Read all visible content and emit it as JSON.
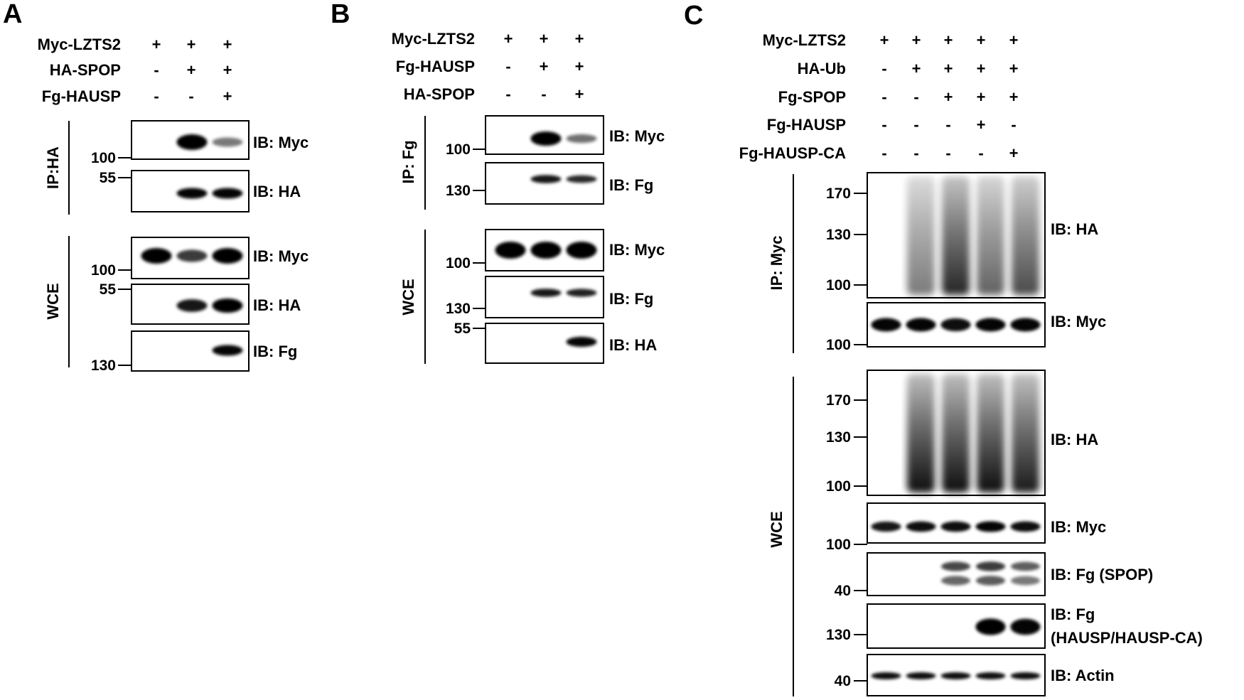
{
  "panels": [
    {
      "letter": "A",
      "conditions": [
        {
          "label": "Myc-LZTS2",
          "signs": [
            "+",
            "+",
            "+"
          ]
        },
        {
          "label": "HA-SPOP",
          "signs": [
            "-",
            "+",
            "+"
          ]
        },
        {
          "label": "Fg-HAUSP",
          "signs": [
            "-",
            "-",
            "+"
          ]
        }
      ],
      "groups": [
        "IP:HA",
        "WCE"
      ],
      "blots": [
        {
          "ib": "IB: Myc",
          "marker": "100",
          "bands": [
            0,
            1,
            0.25
          ]
        },
        {
          "ib": "IB: HA",
          "marker": "55",
          "bands": [
            0,
            0.9,
            0.9
          ]
        },
        {
          "ib": "IB: Myc",
          "marker": "100",
          "bands": [
            1,
            0.6,
            1
          ]
        },
        {
          "ib": "IB: HA",
          "marker": "55",
          "bands": [
            0,
            0.8,
            1
          ]
        },
        {
          "ib": "IB: Fg",
          "marker": "130",
          "bands": [
            0,
            0,
            0.9
          ]
        }
      ]
    },
    {
      "letter": "B",
      "conditions": [
        {
          "label": "Myc-LZTS2",
          "signs": [
            "+",
            "+",
            "+"
          ]
        },
        {
          "label": "Fg-HAUSP",
          "signs": [
            "-",
            "+",
            "+"
          ]
        },
        {
          "label": "HA-SPOP",
          "signs": [
            "-",
            "-",
            "+"
          ]
        }
      ],
      "groups": [
        "IP: Fg",
        "WCE"
      ],
      "blots": [
        {
          "ib": "IB: Myc",
          "marker": "100",
          "bands": [
            0,
            1,
            0.3
          ]
        },
        {
          "ib": "IB: Fg",
          "marker": "130",
          "bands": [
            0,
            0.8,
            0.7
          ]
        },
        {
          "ib": "IB: Myc",
          "marker": "100",
          "bands": [
            1,
            1,
            1
          ]
        },
        {
          "ib": "IB: Fg",
          "marker": "130",
          "bands": [
            0,
            0.8,
            0.75
          ]
        },
        {
          "ib": "IB: HA",
          "marker": "55",
          "bands": [
            0,
            0,
            0.9
          ]
        }
      ]
    },
    {
      "letter": "C",
      "conditions": [
        {
          "label": "Myc-LZTS2",
          "signs": [
            "+",
            "+",
            "+",
            "+",
            "+"
          ]
        },
        {
          "label": "HA-Ub",
          "signs": [
            "-",
            "+",
            "+",
            "+",
            "+"
          ]
        },
        {
          "label": "Fg-SPOP",
          "signs": [
            "-",
            "-",
            "+",
            "+",
            "+"
          ]
        },
        {
          "label": "Fg-HAUSP",
          "signs": [
            "-",
            "-",
            "-",
            "+",
            "-"
          ]
        },
        {
          "label": "Fg-HAUSP-CA",
          "signs": [
            "-",
            "-",
            "-",
            "-",
            "+"
          ]
        }
      ],
      "groups": [
        "IP: Myc",
        "WCE"
      ],
      "blots": [
        {
          "ib": "IB: HA",
          "markers": [
            "170",
            "130",
            "100"
          ],
          "smear": [
            0,
            0.55,
            0.9,
            0.65,
            0.75
          ]
        },
        {
          "ib": "IB: Myc",
          "markers": [
            "100"
          ],
          "bands": [
            0.9,
            0.9,
            0.85,
            0.9,
            0.9
          ]
        },
        {
          "ib": "IB: HA",
          "markers": [
            "170",
            "130",
            "100"
          ],
          "smear": [
            0,
            1,
            1,
            1,
            0.95
          ]
        },
        {
          "ib": "IB: Myc",
          "markers": [
            "100"
          ],
          "bands": [
            0.8,
            0.85,
            0.85,
            0.9,
            0.85
          ]
        },
        {
          "ib": "IB: Fg (SPOP)",
          "markers": [
            "40"
          ],
          "bands": [
            0,
            0,
            0.8,
            0.85,
            0.7
          ]
        },
        {
          "ib": "IB: Fg",
          "ib2": "(HAUSP/HAUSP-CA)",
          "markers": [
            "130"
          ],
          "bands": [
            0,
            0,
            0,
            0.95,
            0.9
          ]
        },
        {
          "ib": "IB: Actin",
          "markers": [
            "40"
          ],
          "bands": [
            0.85,
            0.85,
            0.85,
            0.85,
            0.85
          ]
        }
      ]
    }
  ]
}
